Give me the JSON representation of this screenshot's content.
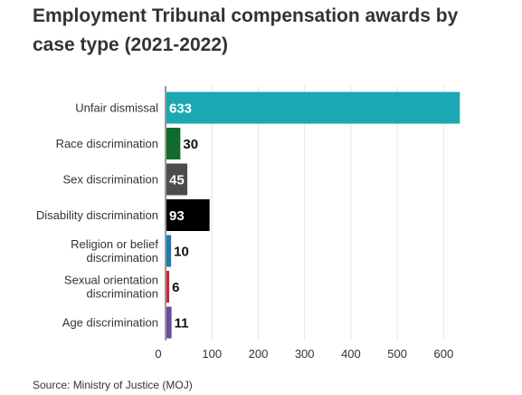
{
  "title": "Employment Tribunal compensation awards by case type (2021-2022)",
  "source": "Source: Ministry of Justice (MOJ)",
  "chart_data": {
    "type": "bar",
    "orientation": "horizontal",
    "title": "Employment Tribunal compensation awards by case type (2021-2022)",
    "categories": [
      [
        "Unfair dismissal"
      ],
      [
        "Race discrimination"
      ],
      [
        "Sex discrimination"
      ],
      [
        "Disability discrimination"
      ],
      [
        "Religion or belief",
        "discrimination"
      ],
      [
        "Sexual orientation",
        "discrimination"
      ],
      [
        "Age discrimination"
      ]
    ],
    "values": [
      633,
      30,
      45,
      93,
      10,
      6,
      11
    ],
    "colors": [
      "#1aa8b3",
      "#0f6b2e",
      "#4d4d4d",
      "#000000",
      "#1f7ab0",
      "#d62030",
      "#6a4c9c"
    ],
    "label_inside": [
      true,
      false,
      true,
      true,
      false,
      false,
      false
    ],
    "xlim": [
      0,
      650
    ],
    "xticks": [
      0,
      100,
      200,
      300,
      400,
      500,
      600
    ],
    "grid": true,
    "xlabel": "",
    "ylabel": ""
  }
}
